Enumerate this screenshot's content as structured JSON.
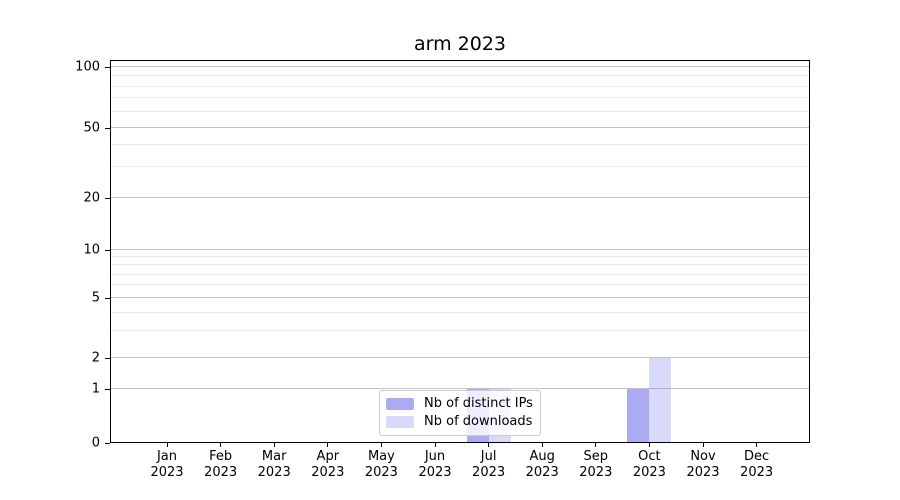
{
  "title": "arm 2023",
  "y_axis": {
    "ticks": [
      0,
      1,
      2,
      5,
      10,
      20,
      50,
      100
    ]
  },
  "x_axis": {
    "year": "2023",
    "months": [
      "Jan",
      "Feb",
      "Mar",
      "Apr",
      "May",
      "Jun",
      "Jul",
      "Aug",
      "Sep",
      "Oct",
      "Nov",
      "Dec"
    ]
  },
  "legend": {
    "items": [
      {
        "label": "Nb of distinct IPs",
        "color": "rgba(128,128,238,0.66)"
      },
      {
        "label": "Nb of downloads",
        "color": "rgba(128,128,238,0.30)"
      }
    ]
  },
  "colors": {
    "distinct_ips": "rgba(128,128,238,0.66)",
    "downloads": "rgba(128,128,238,0.30)",
    "grid_major": "#c3c3c3",
    "grid_minor": "#ececec"
  },
  "chart_data": {
    "type": "bar",
    "title": "arm 2023",
    "categories": [
      "Jan 2023",
      "Feb 2023",
      "Mar 2023",
      "Apr 2023",
      "May 2023",
      "Jun 2023",
      "Jul 2023",
      "Aug 2023",
      "Sep 2023",
      "Oct 2023",
      "Nov 2023",
      "Dec 2023"
    ],
    "series": [
      {
        "name": "Nb of distinct IPs",
        "color": "rgba(128,128,238,0.66)",
        "values": [
          0,
          0,
          0,
          0,
          0,
          0,
          1,
          0,
          0,
          1,
          0,
          0
        ]
      },
      {
        "name": "Nb of downloads",
        "color": "rgba(128,128,238,0.30)",
        "values": [
          0,
          0,
          0,
          0,
          0,
          0,
          1,
          0,
          0,
          2,
          0,
          0
        ]
      }
    ],
    "yscale": "log-like",
    "yticks": [
      0,
      1,
      2,
      5,
      10,
      20,
      50,
      100
    ],
    "ylim": [
      0,
      110
    ],
    "grid": true,
    "legend_position": "lower center"
  }
}
